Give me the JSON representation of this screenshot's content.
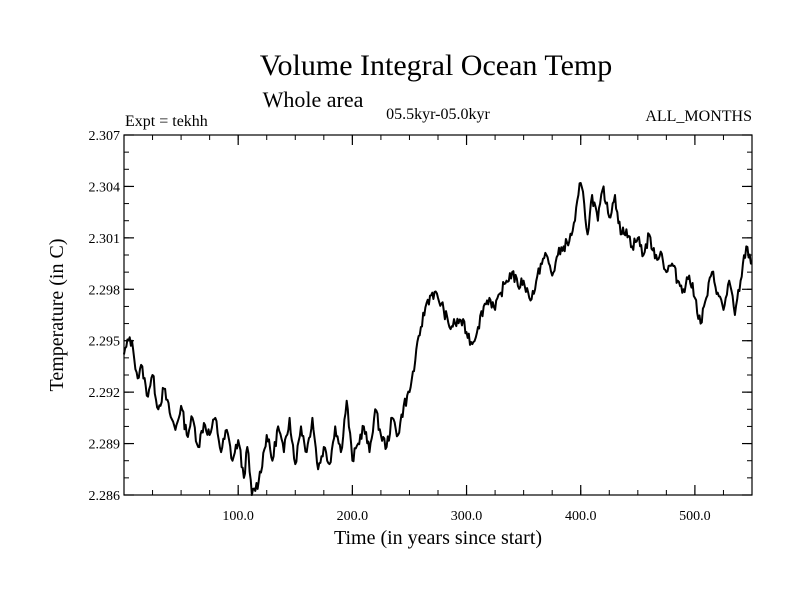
{
  "chart_data": {
    "type": "line",
    "title": "Volume Integral Ocean Temp",
    "subtitle": "Whole area",
    "period_label": "05.5kyr-05.0kyr",
    "expt_label": "Expt = tekhh",
    "months_label": "ALL_MONTHS",
    "xlabel": "Time (in years since start)",
    "ylabel": "Temperature (in C)",
    "xlim": [
      0,
      550
    ],
    "ylim": [
      2.286,
      2.307
    ],
    "x_ticks": [
      100,
      200,
      300,
      400,
      500
    ],
    "x_tick_labels": [
      "100.0",
      "200.0",
      "300.0",
      "400.0",
      "500.0"
    ],
    "y_ticks": [
      2.286,
      2.289,
      2.292,
      2.295,
      2.298,
      2.301,
      2.304,
      2.307
    ],
    "y_tick_labels": [
      "2.286",
      "2.289",
      "2.292",
      "2.295",
      "2.298",
      "2.301",
      "2.304",
      "2.307"
    ],
    "x_minor_step": 25,
    "y_minor_step": 0.001,
    "grid": false,
    "series": [
      {
        "name": "tekhh",
        "color": "#000000",
        "x": [
          0,
          5,
          8,
          12,
          16,
          20,
          25,
          30,
          35,
          40,
          45,
          50,
          55,
          60,
          65,
          70,
          75,
          80,
          85,
          90,
          95,
          100,
          105,
          108,
          112,
          118,
          125,
          130,
          135,
          140,
          145,
          150,
          155,
          160,
          165,
          170,
          175,
          180,
          185,
          190,
          195,
          200,
          205,
          210,
          215,
          220,
          225,
          230,
          235,
          240,
          245,
          250,
          255,
          260,
          265,
          270,
          275,
          280,
          285,
          290,
          295,
          300,
          305,
          310,
          315,
          320,
          325,
          330,
          335,
          340,
          345,
          350,
          355,
          360,
          365,
          370,
          375,
          380,
          385,
          390,
          395,
          398,
          400,
          403,
          406,
          410,
          415,
          420,
          422,
          425,
          430,
          435,
          440,
          445,
          450,
          455,
          460,
          465,
          470,
          475,
          480,
          485,
          490,
          495,
          500,
          505,
          510,
          515,
          520,
          525,
          530,
          535,
          540,
          545,
          550
        ],
        "values": [
          2.2942,
          2.2952,
          2.2945,
          2.2928,
          2.2935,
          2.2918,
          2.293,
          2.291,
          2.2922,
          2.2908,
          2.2898,
          2.2912,
          2.2895,
          2.2905,
          2.2888,
          2.2902,
          2.2895,
          2.2905,
          2.2885,
          2.2898,
          2.288,
          2.2892,
          2.287,
          2.2888,
          2.286,
          2.2868,
          2.2895,
          2.288,
          2.29,
          2.2885,
          2.2905,
          2.2878,
          2.29,
          2.2885,
          2.2905,
          2.2875,
          2.2888,
          2.2878,
          2.29,
          2.2885,
          2.2915,
          2.288,
          2.289,
          2.29,
          2.2885,
          2.291,
          2.2895,
          2.2888,
          2.2905,
          2.2895,
          2.2912,
          2.292,
          2.2938,
          2.2958,
          2.2972,
          2.2978,
          2.2975,
          2.2968,
          2.2958,
          2.296,
          2.2962,
          2.2955,
          2.2948,
          2.2958,
          2.297,
          2.2975,
          2.2968,
          2.2978,
          2.2985,
          2.299,
          2.2982,
          2.2985,
          2.2975,
          2.298,
          2.2995,
          2.3,
          2.2988,
          2.3,
          2.3005,
          2.3008,
          2.302,
          2.3035,
          2.3042,
          2.303,
          2.3012,
          2.3035,
          2.302,
          2.304,
          2.303,
          2.3022,
          2.3035,
          2.3012,
          2.3015,
          2.3005,
          2.301,
          2.3,
          2.3012,
          2.2998,
          2.3002,
          2.299,
          2.2995,
          2.2985,
          2.298,
          2.2988,
          2.2975,
          2.296,
          2.2975,
          2.299,
          2.2978,
          2.2968,
          2.2985,
          2.2965,
          2.2985,
          2.3005,
          2.2995
        ]
      }
    ]
  }
}
